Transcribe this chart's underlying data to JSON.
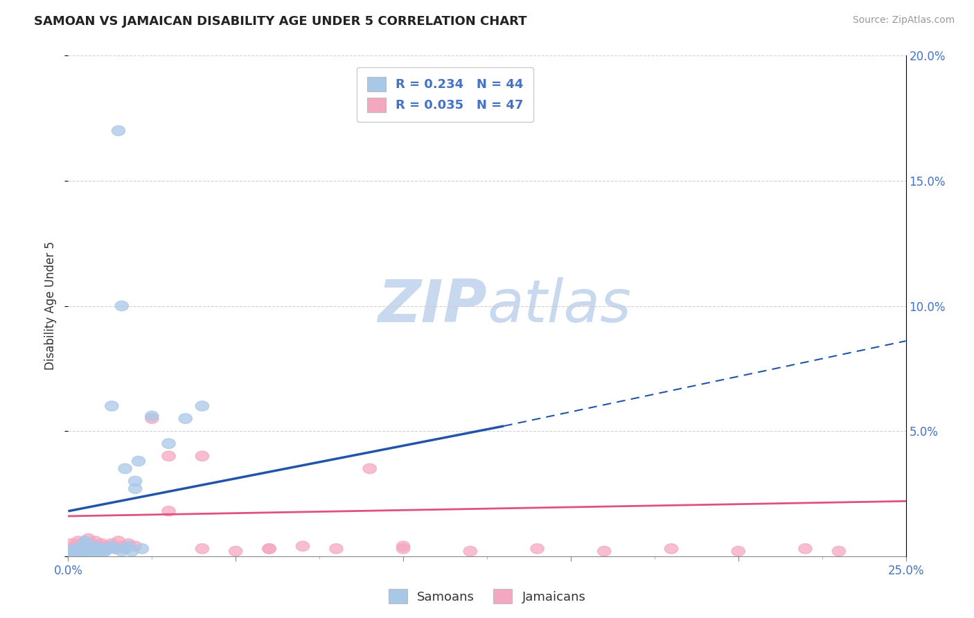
{
  "title": "SAMOAN VS JAMAICAN DISABILITY AGE UNDER 5 CORRELATION CHART",
  "source": "Source: ZipAtlas.com",
  "ylabel": "Disability Age Under 5",
  "xlim": [
    0.0,
    0.25
  ],
  "ylim": [
    0.0,
    0.2
  ],
  "r_samoan": 0.234,
  "n_samoan": 44,
  "r_jamaican": 0.035,
  "n_jamaican": 47,
  "samoan_color": "#A8C8E8",
  "jamaican_color": "#F4A8C0",
  "samoan_line_color": "#2255AA",
  "jamaican_line_color": "#E05080",
  "legend_text_color": "#4472C4",
  "background_color": "#FFFFFF",
  "grid_color": "#CCCCCC",
  "watermark_color": "#C8D8EE",
  "samoan_x": [
    0.001,
    0.001,
    0.002,
    0.002,
    0.002,
    0.003,
    0.003,
    0.003,
    0.004,
    0.004,
    0.004,
    0.005,
    0.005,
    0.005,
    0.006,
    0.006,
    0.007,
    0.007,
    0.008,
    0.008,
    0.009,
    0.009,
    0.01,
    0.01,
    0.011,
    0.012,
    0.013,
    0.014,
    0.015,
    0.016,
    0.017,
    0.018,
    0.019,
    0.02,
    0.021,
    0.022,
    0.025,
    0.03,
    0.035,
    0.04,
    0.016,
    0.013,
    0.02,
    0.017
  ],
  "samoan_y": [
    0.002,
    0.001,
    0.003,
    0.001,
    0.002,
    0.002,
    0.001,
    0.003,
    0.003,
    0.002,
    0.001,
    0.006,
    0.005,
    0.003,
    0.004,
    0.002,
    0.003,
    0.001,
    0.004,
    0.002,
    0.003,
    0.002,
    0.003,
    0.001,
    0.002,
    0.003,
    0.004,
    0.003,
    0.17,
    0.002,
    0.003,
    0.004,
    0.002,
    0.027,
    0.038,
    0.003,
    0.056,
    0.045,
    0.055,
    0.06,
    0.1,
    0.06,
    0.03,
    0.035
  ],
  "jamaican_x": [
    0.001,
    0.002,
    0.002,
    0.003,
    0.003,
    0.004,
    0.004,
    0.005,
    0.005,
    0.006,
    0.006,
    0.007,
    0.007,
    0.008,
    0.008,
    0.009,
    0.01,
    0.01,
    0.011,
    0.012,
    0.013,
    0.014,
    0.015,
    0.016,
    0.017,
    0.018,
    0.02,
    0.025,
    0.03,
    0.04,
    0.05,
    0.06,
    0.07,
    0.08,
    0.09,
    0.1,
    0.12,
    0.14,
    0.16,
    0.18,
    0.2,
    0.22,
    0.03,
    0.04,
    0.06,
    0.1,
    0.23
  ],
  "jamaican_y": [
    0.005,
    0.004,
    0.003,
    0.003,
    0.006,
    0.002,
    0.005,
    0.004,
    0.002,
    0.003,
    0.007,
    0.005,
    0.003,
    0.004,
    0.006,
    0.003,
    0.005,
    0.004,
    0.003,
    0.004,
    0.005,
    0.003,
    0.006,
    0.004,
    0.003,
    0.005,
    0.004,
    0.055,
    0.04,
    0.003,
    0.002,
    0.003,
    0.004,
    0.003,
    0.035,
    0.003,
    0.002,
    0.003,
    0.002,
    0.003,
    0.002,
    0.003,
    0.018,
    0.04,
    0.003,
    0.004,
    0.002
  ],
  "samoan_line_x0": 0.0,
  "samoan_line_y0": 0.018,
  "samoan_line_x1_solid": 0.13,
  "samoan_line_y1_solid": 0.052,
  "samoan_line_x1_dash": 0.25,
  "samoan_line_y1_dash": 0.086,
  "jamaican_line_x0": 0.0,
  "jamaican_line_y0": 0.016,
  "jamaican_line_x1": 0.25,
  "jamaican_line_y1": 0.022
}
